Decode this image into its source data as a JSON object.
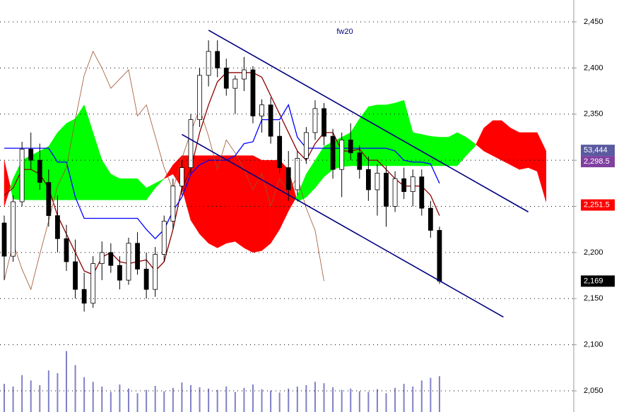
{
  "chart_data": {
    "type": "candlestick",
    "title": "fw20",
    "open": [
      2232,
      2196,
      2255,
      2312,
      2300,
      2276,
      2240,
      2215,
      2190,
      2160,
      2145,
      2188,
      2200,
      2186,
      2170,
      2210,
      2182,
      2160,
      2198,
      2234,
      2272,
      2292,
      2344,
      2392,
      2418,
      2400,
      2378,
      2388,
      2398,
      2348,
      2360,
      2326,
      2292,
      2268,
      2302,
      2330,
      2356,
      2326,
      2290,
      2322,
      2308,
      2290,
      2268,
      2286,
      2250,
      2280,
      2266,
      2282,
      2248,
      2224
    ],
    "high": [
      2240,
      2262,
      2320,
      2330,
      2318,
      2290,
      2262,
      2230,
      2214,
      2178,
      2196,
      2212,
      2210,
      2196,
      2216,
      2222,
      2200,
      2206,
      2240,
      2280,
      2300,
      2350,
      2400,
      2430,
      2430,
      2410,
      2392,
      2412,
      2402,
      2366,
      2368,
      2342,
      2310,
      2310,
      2336,
      2365,
      2362,
      2334,
      2330,
      2340,
      2316,
      2304,
      2296,
      2294,
      2288,
      2292,
      2290,
      2290,
      2256,
      2228
    ],
    "low": [
      2170,
      2190,
      2250,
      2290,
      2268,
      2228,
      2200,
      2180,
      2150,
      2136,
      2140,
      2170,
      2178,
      2160,
      2165,
      2176,
      2150,
      2152,
      2190,
      2226,
      2262,
      2286,
      2336,
      2380,
      2390,
      2370,
      2350,
      2375,
      2340,
      2330,
      2318,
      2286,
      2256,
      2262,
      2296,
      2322,
      2316,
      2280,
      2260,
      2300,
      2280,
      2256,
      2240,
      2228,
      2244,
      2258,
      2250,
      2240,
      2216,
      2166
    ],
    "close": [
      2196,
      2255,
      2312,
      2300,
      2276,
      2240,
      2215,
      2190,
      2160,
      2145,
      2188,
      2200,
      2186,
      2170,
      2210,
      2182,
      2160,
      2198,
      2234,
      2272,
      2292,
      2344,
      2392,
      2418,
      2400,
      2378,
      2388,
      2398,
      2348,
      2360,
      2326,
      2292,
      2268,
      2302,
      2330,
      2356,
      2326,
      2290,
      2322,
      2308,
      2290,
      2268,
      2286,
      2250,
      2280,
      2266,
      2282,
      2248,
      2224,
      2169
    ],
    "volume": [
      42000,
      38000,
      55000,
      47000,
      40000,
      62000,
      58000,
      91000,
      70000,
      52000,
      45000,
      38000,
      30000,
      41000,
      35000,
      28000,
      33000,
      39000,
      31000,
      36000,
      44000,
      40000,
      37000,
      35000,
      33000,
      38000,
      30000,
      36000,
      41000,
      34000,
      32000,
      29000,
      35000,
      38000,
      40000,
      45000,
      43000,
      37000,
      33000,
      35000,
      31000,
      30000,
      34000,
      28000,
      36000,
      42000,
      38000,
      47000,
      51000,
      53444
    ],
    "series": [
      {
        "name": "tenkan",
        "color": "#8b0000",
        "values": [
          2262,
          2270,
          2290,
          2290,
          2285,
          2270,
          2240,
          2220,
          2200,
          2180,
          2176,
          2195,
          2200,
          2190,
          2188,
          2190,
          2192,
          2180,
          2190,
          2225,
          2270,
          2290,
          2330,
          2360,
          2385,
          2395,
          2395,
          2395,
          2395,
          2390,
          2370,
          2350,
          2330,
          2310,
          2300,
          2318,
          2330,
          2330,
          2310,
          2310,
          2312,
          2300,
          2300,
          2290,
          2280,
          2272,
          2272,
          2272,
          2262,
          2240
        ]
      },
      {
        "name": "kijun",
        "color": "#0000ff",
        "values": [
          2313,
          2313,
          2313,
          2313,
          2313,
          2313,
          2298,
          2298,
          2260,
          2237,
          2237,
          2237,
          2237,
          2237,
          2237,
          2237,
          2225,
          2215,
          2225,
          2245,
          2260,
          2285,
          2295,
          2300,
          2300,
          2300,
          2305,
          2318,
          2320,
          2344,
          2344,
          2344,
          2360,
          2325,
          2313,
          2313,
          2313,
          2313,
          2313,
          2313,
          2313,
          2313,
          2313,
          2313,
          2310,
          2300,
          2298,
          2298,
          2296,
          2275
        ]
      },
      {
        "name": "chikou",
        "color": "#a0522d",
        "values": [
          2170,
          2210,
          2182,
          2160,
          2198,
          2234,
          2272,
          2292,
          2344,
          2392,
          2418,
          2400,
          2378,
          2388,
          2398,
          2348,
          2360,
          2326,
          2292,
          2268,
          2302,
          2330,
          2356,
          2326,
          2290,
          2322,
          2308,
          2290,
          2268,
          2286,
          2250,
          2280,
          2266,
          2282,
          2248,
          2224,
          2169,
          null,
          null,
          null,
          null,
          null,
          null,
          null,
          null,
          null,
          null,
          null,
          null,
          null
        ]
      }
    ],
    "span_a": [
      2250,
      2280,
      2300,
      2305,
      2310,
      2315,
      2330,
      2340,
      2345,
      2360,
      2330,
      2300,
      2285,
      2280,
      2280,
      2280,
      2270,
      2275,
      2280,
      2285,
      2270,
      2235,
      2220,
      2210,
      2205,
      2210,
      2212,
      2205,
      2200,
      2202,
      2210,
      2225,
      2245,
      2262,
      2285,
      2300,
      2315,
      2320,
      2325,
      2330,
      2345,
      2358,
      2360,
      2360,
      2362,
      2365,
      2330,
      2328,
      2326,
      2325,
      2325,
      2330,
      2325,
      2318,
      2310,
      2305,
      2300,
      2295,
      2290,
      2292,
      2288,
      2255
    ],
    "span_b": [
      2300,
      2258,
      2257,
      2257,
      2257,
      2257,
      2257,
      2257,
      2257,
      2257,
      2257,
      2257,
      2257,
      2257,
      2257,
      2257,
      2257,
      2270,
      2280,
      2295,
      2305,
      2305,
      2305,
      2305,
      2305,
      2305,
      2305,
      2305,
      2305,
      2300,
      2300,
      2300,
      2290,
      2255,
      2260,
      2270,
      2282,
      2290,
      2293,
      2294,
      2294,
      2294,
      2294,
      2294,
      2294,
      2294,
      2294,
      2294,
      2294,
      2294,
      2294,
      2294,
      2305,
      2315,
      2335,
      2343,
      2343,
      2335,
      2330,
      2330,
      2330,
      2310
    ],
    "cloud_colors": {
      "up": "#00ff00",
      "down": "#ff0000"
    },
    "trendlines": [
      {
        "x": [
          23,
          59
        ],
        "y": [
          2441,
          2244
        ],
        "color": "#000080"
      },
      {
        "x": [
          20,
          56.2
        ],
        "y": [
          2328,
          2130
        ],
        "color": "#000080"
      }
    ],
    "volume_color": "#8080c8",
    "ylim": [
      2027.1,
      2473.7
    ],
    "yticks": [
      {
        "value": 2050,
        "label": "2,050"
      },
      {
        "value": 2100,
        "label": "2,100"
      },
      {
        "value": 2150,
        "label": "2,150"
      },
      {
        "value": 2200,
        "label": "2,200"
      },
      {
        "value": 2250,
        "label": "2,250"
      },
      {
        "value": 2300,
        "label": "2,300"
      },
      {
        "value": 2350,
        "label": "2,350"
      },
      {
        "value": 2400,
        "label": "2,400"
      },
      {
        "value": 2450,
        "label": "2,450"
      }
    ],
    "grid": true,
    "price_labels": [
      {
        "value": 2298.5,
        "label": "2,298.5",
        "color": "#8040a0"
      },
      {
        "value": 2251.5,
        "label": "2,251.5",
        "color": "#ff0000"
      },
      {
        "value": 2169,
        "label": "2,169",
        "color": "#000000"
      }
    ],
    "volume_label": {
      "value": 53444,
      "label": "53,444",
      "color": "#5a5aa0"
    }
  }
}
